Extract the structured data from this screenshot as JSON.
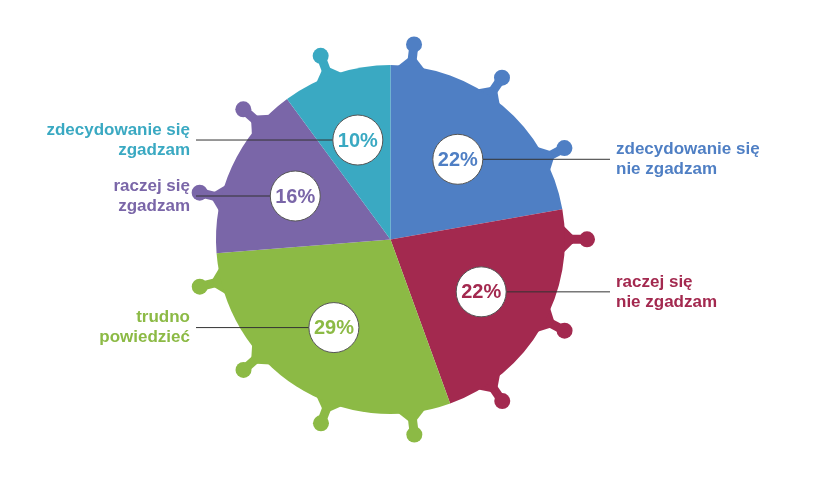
{
  "chart_data": {
    "type": "pie",
    "categories": [
      "zdecydowanie się\nnie zgadzam",
      "raczej się\nnie zgadzam",
      "trudno\npowiedzieć",
      "raczej się\nzgadzam",
      "zdecydowanie się\nzgadzam"
    ],
    "values": [
      22,
      22,
      29,
      16,
      10
    ],
    "value_labels": [
      "22%",
      "22%",
      "29%",
      "16%",
      "10%"
    ],
    "colors": [
      "#4f7fc4",
      "#a3294f",
      "#8cba45",
      "#7a66a8",
      "#3aa9c2"
    ],
    "data_labels": true
  }
}
